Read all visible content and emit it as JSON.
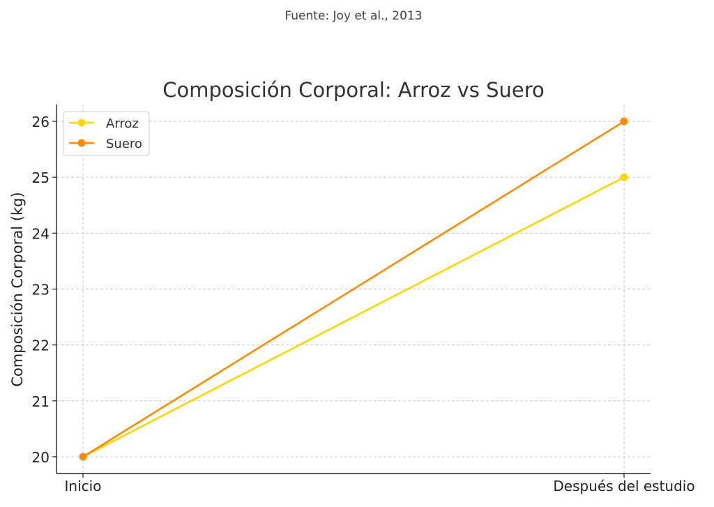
{
  "source_note": "Fuente: Joy et al., 2013",
  "chart_data": {
    "type": "line",
    "title": "Composición Corporal: Arroz vs Suero",
    "xlabel": "",
    "ylabel": "Composición Corporal (kg)",
    "categories": [
      "Inicio",
      "Después del estudio"
    ],
    "series": [
      {
        "name": "Arroz",
        "values": [
          20,
          25
        ],
        "color": "#FFD700"
      },
      {
        "name": "Suero",
        "values": [
          20,
          26
        ],
        "color": "#FF8C00"
      }
    ],
    "ylim": [
      19.7,
      26.3
    ],
    "yticks": [
      20,
      21,
      22,
      23,
      24,
      25,
      26
    ],
    "grid": true,
    "legend": "top-left"
  }
}
